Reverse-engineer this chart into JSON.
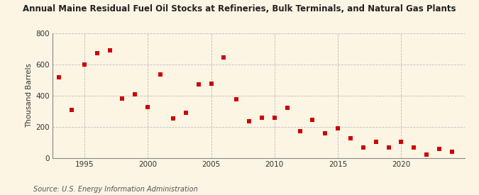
{
  "title": "Annual Maine Residual Fuel Oil Stocks at Refineries, Bulk Terminals, and Natural Gas Plants",
  "ylabel": "Thousand Barrels",
  "source": "Source: U.S. Energy Information Administration",
  "background_color": "#fdf5e4",
  "plot_background_color": "#fdf5e4",
  "marker_color": "#cc0000",
  "marker": "s",
  "marker_size": 4,
  "grid_color": "#bbbbbb",
  "ylim": [
    0,
    800
  ],
  "yticks": [
    0,
    200,
    400,
    600,
    800
  ],
  "xlim": [
    1992.5,
    2025
  ],
  "xticks": [
    1995,
    2000,
    2005,
    2010,
    2015,
    2020
  ],
  "years": [
    1993,
    1994,
    1995,
    1996,
    1997,
    1998,
    1999,
    2000,
    2001,
    2002,
    2003,
    2004,
    2005,
    2006,
    2007,
    2008,
    2009,
    2010,
    2011,
    2012,
    2013,
    2014,
    2015,
    2016,
    2017,
    2018,
    2019,
    2020,
    2021,
    2022,
    2023,
    2024
  ],
  "values": [
    515,
    310,
    600,
    670,
    690,
    380,
    410,
    325,
    535,
    255,
    290,
    470,
    475,
    645,
    375,
    235,
    260,
    260,
    320,
    170,
    245,
    160,
    190,
    125,
    65,
    105,
    65,
    105,
    65,
    20,
    60,
    40
  ]
}
